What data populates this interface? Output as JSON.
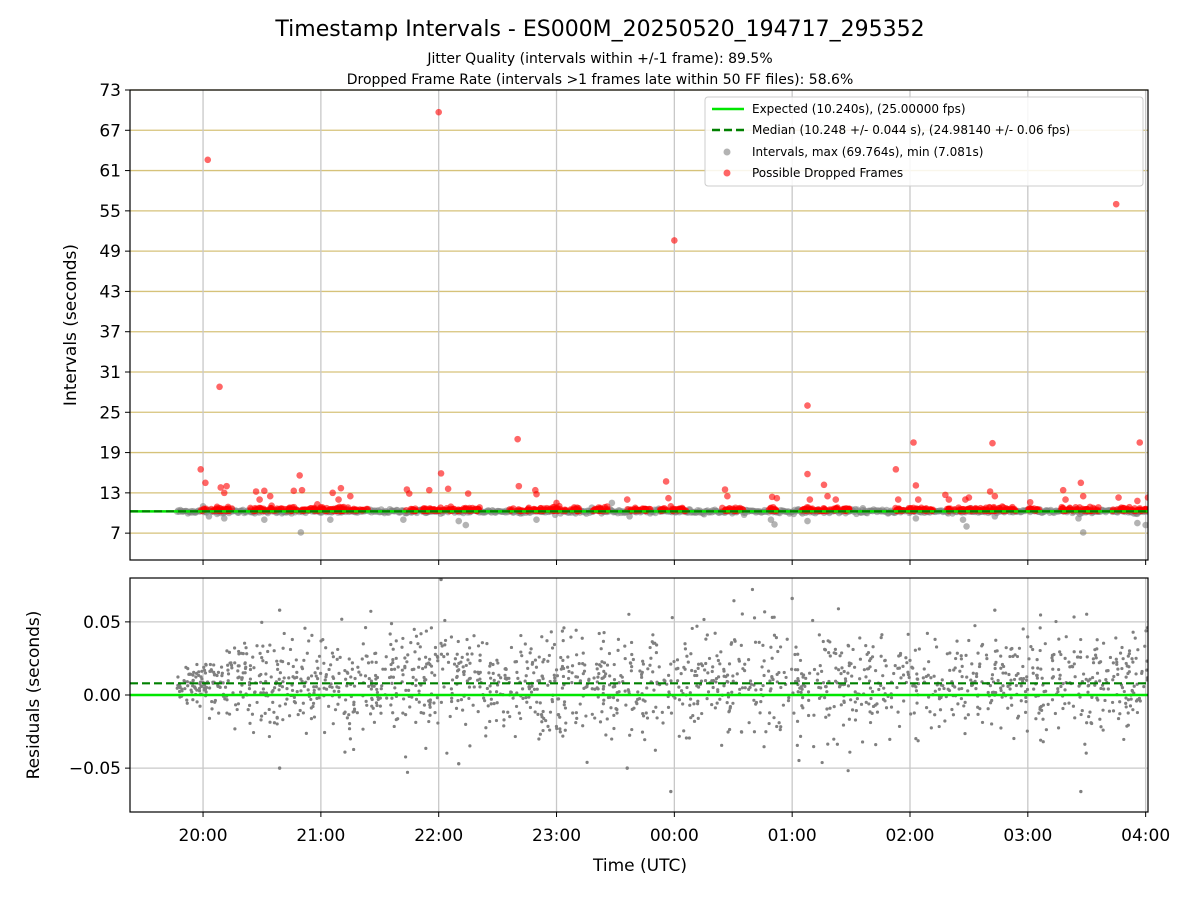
{
  "chart_data": [
    {
      "type": "scatter",
      "title": "Timestamp Intervals - ES000M_20250520_194717_295352",
      "subtitle_lines": [
        "Jitter Quality (intervals within +/-1 frame): 89.5%",
        "Dropped Frame Rate (intervals >1 frames late within 50 FF files): 58.6%"
      ],
      "xlabel": "",
      "ylabel": "Intervals (seconds)",
      "xlim_hours": [
        -0.62,
        8.02
      ],
      "ylim": [
        3,
        73
      ],
      "yticks": [
        7,
        13,
        19,
        25,
        31,
        37,
        43,
        49,
        55,
        61,
        67,
        73
      ],
      "ytick_labels": [
        "7",
        "13",
        "19",
        "25",
        "31",
        "37",
        "43",
        "49",
        "55",
        "61",
        "67",
        "73"
      ],
      "xticks_hours": [
        0,
        1,
        2,
        3,
        4,
        5,
        6,
        7,
        8
      ],
      "grid": true,
      "legend_position": "top-right",
      "expected": 10.24,
      "median": 10.248,
      "series": [
        {
          "name": "Intervals, max (69.764s), min (7.081s)",
          "color": "#808080"
        },
        {
          "name": "Possible Dropped Frames",
          "color": "#ff0000"
        }
      ],
      "lines": [
        {
          "name": "Expected (10.240s), (25.00000 fps)",
          "color": "#00e600",
          "style": "solid"
        },
        {
          "name": "Median (10.248 +/- 0.044 s), (24.98140 +/- 0.06 fps)",
          "color": "#008000",
          "style": "dashed"
        }
      ],
      "gray_outliers": [
        {
          "x": 0.0,
          "y": 11.0
        },
        {
          "x": 0.05,
          "y": 9.5
        },
        {
          "x": 0.18,
          "y": 9.2
        },
        {
          "x": 0.52,
          "y": 9.0
        },
        {
          "x": 0.83,
          "y": 7.1
        },
        {
          "x": 1.08,
          "y": 9.0
        },
        {
          "x": 1.7,
          "y": 9.0
        },
        {
          "x": 2.17,
          "y": 8.8
        },
        {
          "x": 2.23,
          "y": 8.2
        },
        {
          "x": 2.83,
          "y": 9.0
        },
        {
          "x": 3.47,
          "y": 11.5
        },
        {
          "x": 3.62,
          "y": 9.5
        },
        {
          "x": 4.82,
          "y": 9.0
        },
        {
          "x": 4.85,
          "y": 8.3
        },
        {
          "x": 5.13,
          "y": 8.8
        },
        {
          "x": 6.05,
          "y": 9.2
        },
        {
          "x": 6.45,
          "y": 9.0
        },
        {
          "x": 6.48,
          "y": 8.0
        },
        {
          "x": 6.72,
          "y": 9.5
        },
        {
          "x": 7.43,
          "y": 9.2
        },
        {
          "x": 7.47,
          "y": 7.1
        },
        {
          "x": 7.93,
          "y": 8.5
        },
        {
          "x": 8.0,
          "y": 8.2
        },
        {
          "x": 3.3,
          "y": 10.8
        },
        {
          "x": 5.6,
          "y": 10.7
        }
      ],
      "dropped_frames": [
        {
          "x": -0.02,
          "y": 16.5
        },
        {
          "x": 0.02,
          "y": 14.5
        },
        {
          "x": 0.04,
          "y": 62.6
        },
        {
          "x": 0.14,
          "y": 28.8
        },
        {
          "x": 0.15,
          "y": 13.8
        },
        {
          "x": 0.18,
          "y": 13.0
        },
        {
          "x": 0.2,
          "y": 14.0
        },
        {
          "x": 0.45,
          "y": 13.2
        },
        {
          "x": 0.48,
          "y": 12.0
        },
        {
          "x": 0.52,
          "y": 13.3
        },
        {
          "x": 0.57,
          "y": 12.5
        },
        {
          "x": 0.77,
          "y": 13.3
        },
        {
          "x": 0.82,
          "y": 15.6
        },
        {
          "x": 0.84,
          "y": 13.4
        },
        {
          "x": 0.97,
          "y": 11.3
        },
        {
          "x": 1.1,
          "y": 13.0
        },
        {
          "x": 1.15,
          "y": 12.0
        },
        {
          "x": 1.17,
          "y": 13.7
        },
        {
          "x": 1.25,
          "y": 12.5
        },
        {
          "x": 1.73,
          "y": 13.5
        },
        {
          "x": 1.75,
          "y": 12.9
        },
        {
          "x": 1.92,
          "y": 13.4
        },
        {
          "x": 2.0,
          "y": 69.7
        },
        {
          "x": 2.02,
          "y": 15.9
        },
        {
          "x": 2.08,
          "y": 13.6
        },
        {
          "x": 2.25,
          "y": 12.9
        },
        {
          "x": 2.67,
          "y": 21.0
        },
        {
          "x": 2.68,
          "y": 14.0
        },
        {
          "x": 2.82,
          "y": 13.4
        },
        {
          "x": 2.83,
          "y": 12.8
        },
        {
          "x": 3.0,
          "y": 11.5
        },
        {
          "x": 3.6,
          "y": 12.0
        },
        {
          "x": 3.93,
          "y": 14.7
        },
        {
          "x": 3.95,
          "y": 12.2
        },
        {
          "x": 3.97,
          "y": 11.0
        },
        {
          "x": 4.0,
          "y": 50.6
        },
        {
          "x": 4.43,
          "y": 13.5
        },
        {
          "x": 4.45,
          "y": 12.5
        },
        {
          "x": 4.83,
          "y": 12.4
        },
        {
          "x": 4.87,
          "y": 12.2
        },
        {
          "x": 5.13,
          "y": 26.0
        },
        {
          "x": 5.13,
          "y": 15.8
        },
        {
          "x": 5.15,
          "y": 12.0
        },
        {
          "x": 5.27,
          "y": 14.2
        },
        {
          "x": 5.3,
          "y": 12.5
        },
        {
          "x": 5.37,
          "y": 12.0
        },
        {
          "x": 5.88,
          "y": 16.5
        },
        {
          "x": 5.9,
          "y": 12.0
        },
        {
          "x": 6.03,
          "y": 20.5
        },
        {
          "x": 6.05,
          "y": 14.1
        },
        {
          "x": 6.07,
          "y": 12.0
        },
        {
          "x": 6.3,
          "y": 12.7
        },
        {
          "x": 6.33,
          "y": 12.0
        },
        {
          "x": 6.47,
          "y": 12.0
        },
        {
          "x": 6.5,
          "y": 12.3
        },
        {
          "x": 6.68,
          "y": 13.2
        },
        {
          "x": 6.7,
          "y": 20.4
        },
        {
          "x": 6.72,
          "y": 12.5
        },
        {
          "x": 7.02,
          "y": 11.6
        },
        {
          "x": 7.3,
          "y": 13.4
        },
        {
          "x": 7.32,
          "y": 12.0
        },
        {
          "x": 7.45,
          "y": 14.5
        },
        {
          "x": 7.47,
          "y": 12.5
        },
        {
          "x": 7.75,
          "y": 56.0
        },
        {
          "x": 7.77,
          "y": 12.3
        },
        {
          "x": 7.93,
          "y": 11.8
        },
        {
          "x": 7.95,
          "y": 20.5
        },
        {
          "x": 8.02,
          "y": 12.3
        }
      ],
      "baseline_band": {
        "x_start": -0.22,
        "x_end": 8.02,
        "y": 10.24
      }
    },
    {
      "type": "scatter",
      "title": "",
      "xlabel": "Time (UTC)",
      "ylabel": "Residuals (seconds)",
      "xlim_hours": [
        -0.62,
        8.02
      ],
      "ylim": [
        -0.08,
        0.08
      ],
      "yticks": [
        -0.05,
        0.0,
        0.05
      ],
      "ytick_labels": [
        "−0.05",
        "0.00",
        "0.05"
      ],
      "xticks_hours": [
        0,
        1,
        2,
        3,
        4,
        5,
        6,
        7,
        8
      ],
      "xtick_labels": [
        "20:00",
        "21:00",
        "22:00",
        "23:00",
        "00:00",
        "01:00",
        "02:00",
        "03:00",
        "04:00"
      ],
      "grid": true,
      "expected_residual": 0.0,
      "median_residual": 0.008,
      "series": [
        {
          "name": "",
          "color": "#808080",
          "point_count": 1700,
          "std": 0.018,
          "x_start": -0.22,
          "x_end": 8.02
        }
      ],
      "notable_points": [
        {
          "x": 2.02,
          "y": 0.079
        },
        {
          "x": 5.0,
          "y": 0.066
        },
        {
          "x": 3.97,
          "y": -0.066
        },
        {
          "x": 7.45,
          "y": -0.066
        },
        {
          "x": 0.65,
          "y": 0.058
        },
        {
          "x": 0.65,
          "y": -0.05
        },
        {
          "x": 2.17,
          "y": -0.047
        },
        {
          "x": 3.6,
          "y": -0.05
        },
        {
          "x": 6.72,
          "y": 0.058
        }
      ]
    }
  ]
}
